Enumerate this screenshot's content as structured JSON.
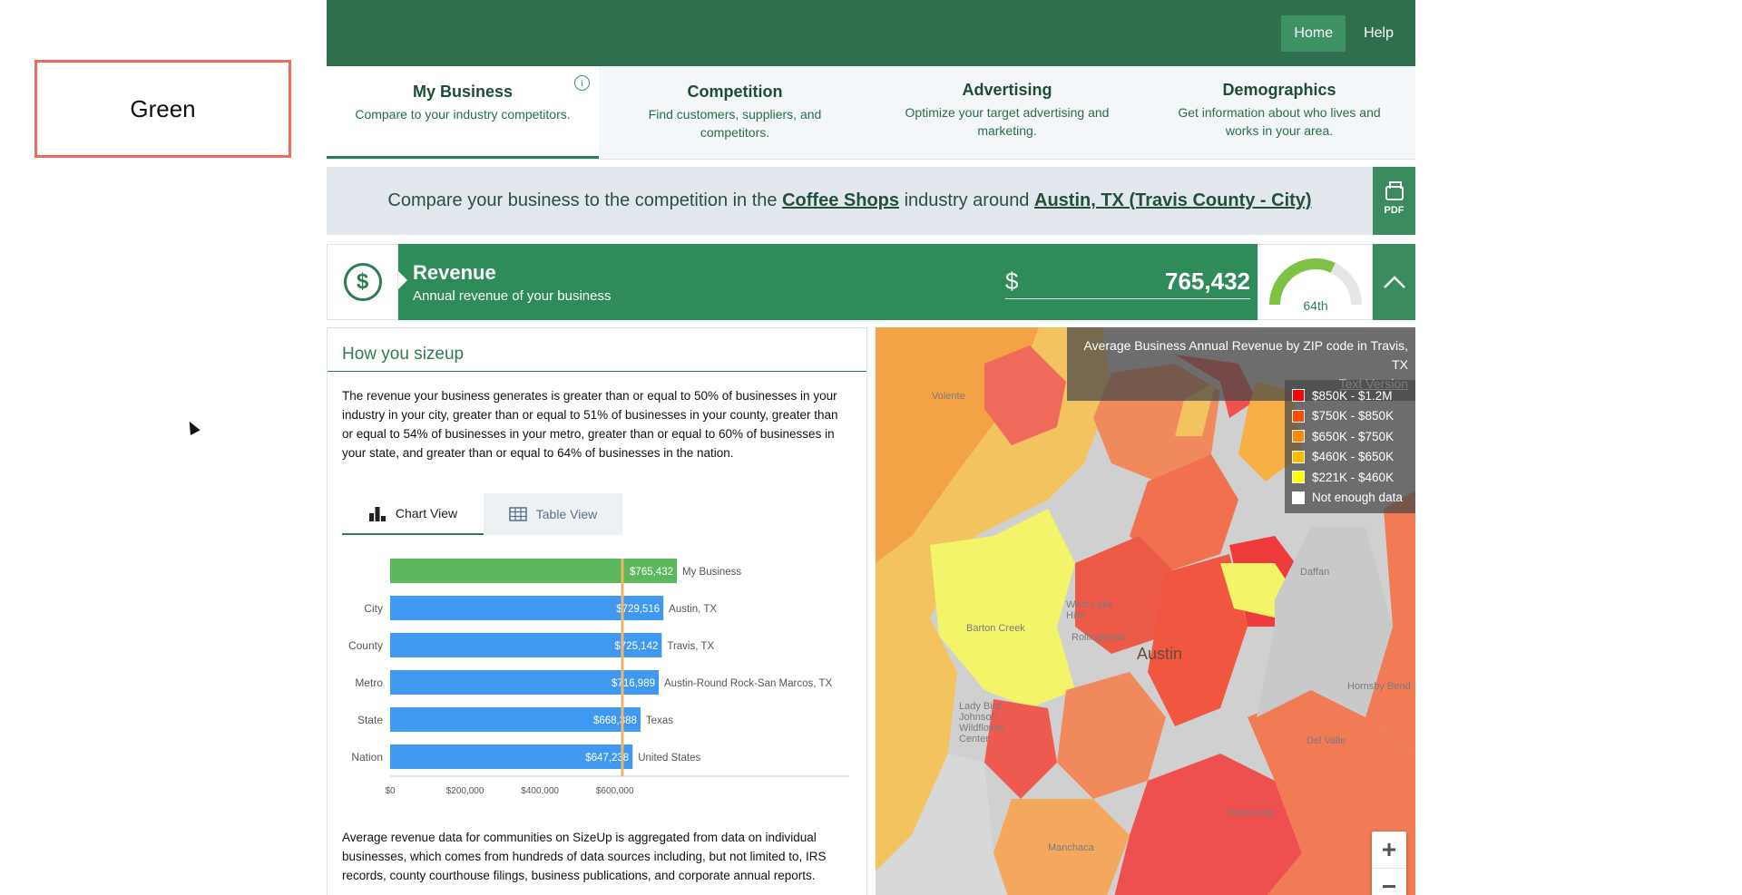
{
  "sidebar": {
    "label": "Green"
  },
  "topnav": {
    "home": "Home",
    "help": "Help"
  },
  "tabs": [
    {
      "title": "My Business",
      "subtitle": "Compare to your industry competitors."
    },
    {
      "title": "Competition",
      "subtitle": "Find customers, suppliers, and competitors."
    },
    {
      "title": "Advertising",
      "subtitle": "Optimize your target advertising and marketing."
    },
    {
      "title": "Demographics",
      "subtitle": "Get information about who lives and works in your area."
    }
  ],
  "compare": {
    "prefix": "Compare your business to the competition in the ",
    "industry": "Coffee Shops",
    "middle": " industry around ",
    "location": "Austin, TX (Travis County - City)",
    "pdf_label": "PDF"
  },
  "revenue": {
    "title": "Revenue",
    "subtitle": "Annual revenue of your business",
    "currency": "$",
    "value": "765,432",
    "percentile_label": "64th",
    "percentile": 64
  },
  "sizeup": {
    "heading": "How you sizeup",
    "description": "The revenue your business generates is greater than or equal to 50% of businesses in your industry in your city, greater than or equal to 51% of businesses in your county, greater than or equal to 54% of businesses in your metro, greater than or equal to 60% of businesses in your state, and greater than or equal to 64% of businesses in the nation.",
    "chart_view_label": "Chart View",
    "table_view_label": "Table View",
    "footnote": "Average revenue data for communities on SizeUp is aggregated from data on individual businesses, which comes from hundreds of data sources including, but not limited to, IRS records, county courthouse filings, business publications, and corporate annual reports."
  },
  "chart_data": {
    "type": "bar",
    "orientation": "horizontal",
    "categories": [
      "",
      "City",
      "County",
      "Metro",
      "State",
      "Nation"
    ],
    "values": [
      765432,
      729516,
      725142,
      716989,
      668388,
      647238
    ],
    "value_labels": [
      "$765,432",
      "$729,516",
      "$725,142",
      "$716,989",
      "$668,388",
      "$647,238"
    ],
    "bar_names": [
      "My Business",
      "Austin, TX",
      "Travis, TX",
      "Austin-Round Rock-San Marcos, TX",
      "Texas",
      "United States"
    ],
    "bar_colors": [
      "#5cb85c",
      "#3f99f0",
      "#3f99f0",
      "#3f99f0",
      "#3f99f0",
      "#3f99f0"
    ],
    "x_ticks": [
      "$0",
      "$200,000",
      "$400,000",
      "$600,000"
    ],
    "x_tick_values": [
      0,
      200000,
      400000,
      600000
    ],
    "reference_value": 620000,
    "reference_color": "#f0b56b",
    "xlim": [
      0,
      765432
    ]
  },
  "map": {
    "title": "Average Business Annual Revenue by ZIP code in Travis, TX",
    "text_version": "Text Version",
    "legend": [
      {
        "label": "$850K - $1.2M",
        "color": "#ff0000"
      },
      {
        "label": "$750K - $850K",
        "color": "#ff4d00"
      },
      {
        "label": "$650K - $750K",
        "color": "#ff8800"
      },
      {
        "label": "$460K - $650K",
        "color": "#ffbb00"
      },
      {
        "label": "$221K - $460K",
        "color": "#ffff00"
      },
      {
        "label": "Not enough data",
        "color": "#ffffff"
      }
    ],
    "city_label": "Austin",
    "places": [
      "Volente",
      "West Lake Hills",
      "Rollingwood",
      "Barton Creek",
      "Lady Bird Johnson Wildflower Center",
      "Daffan",
      "Del Valle",
      "Manchaca",
      "Pilot Knob",
      "Hornsby Bend"
    ],
    "zoom_in": "+",
    "zoom_out": "−"
  }
}
